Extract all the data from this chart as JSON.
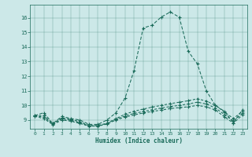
{
  "xlabel": "Humidex (Indice chaleur)",
  "bg_color": "#cce8e8",
  "line_color": "#1a6b5a",
  "xlim": [
    -0.5,
    23.5
  ],
  "ylim": [
    8.4,
    16.9
  ],
  "x_ticks": [
    0,
    1,
    2,
    3,
    4,
    5,
    6,
    7,
    8,
    9,
    10,
    11,
    12,
    13,
    14,
    15,
    16,
    17,
    18,
    19,
    20,
    21,
    22,
    23
  ],
  "y_ticks": [
    9,
    10,
    11,
    12,
    13,
    14,
    15,
    16
  ],
  "series": [
    [
      9.3,
      9.5,
      8.75,
      9.25,
      9.1,
      9.0,
      8.7,
      8.7,
      9.0,
      9.5,
      10.5,
      12.4,
      15.3,
      15.5,
      16.05,
      16.4,
      16.05,
      13.7,
      12.85,
      11.0,
      10.0,
      9.6,
      8.8,
      9.7
    ],
    [
      9.3,
      9.3,
      8.75,
      9.15,
      9.05,
      8.88,
      8.62,
      8.62,
      8.78,
      9.1,
      9.4,
      9.6,
      9.75,
      9.88,
      10.0,
      10.12,
      10.22,
      10.32,
      10.45,
      10.3,
      10.0,
      9.55,
      9.1,
      9.6
    ],
    [
      9.28,
      9.2,
      8.72,
      9.08,
      8.98,
      8.82,
      8.6,
      8.6,
      8.75,
      9.05,
      9.28,
      9.45,
      9.58,
      9.7,
      9.82,
      9.92,
      10.0,
      10.1,
      10.22,
      10.1,
      9.82,
      9.38,
      8.92,
      9.45
    ],
    [
      9.25,
      9.1,
      8.68,
      9.0,
      8.92,
      8.76,
      8.58,
      8.58,
      8.72,
      9.0,
      9.2,
      9.35,
      9.48,
      9.58,
      9.68,
      9.78,
      9.85,
      9.9,
      10.0,
      9.9,
      9.68,
      9.22,
      8.78,
      9.35
    ]
  ]
}
